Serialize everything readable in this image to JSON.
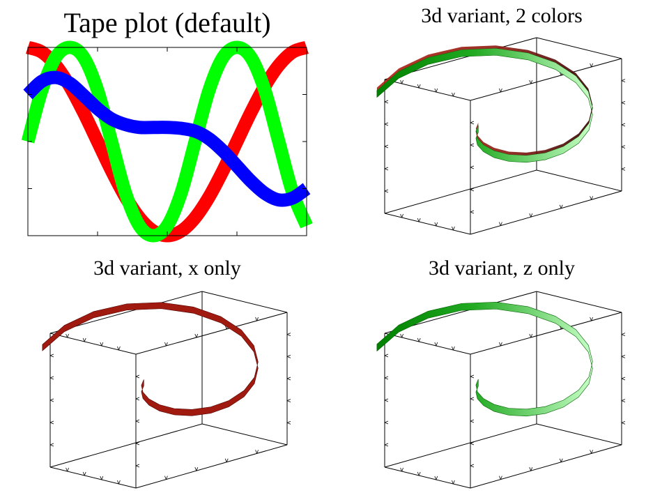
{
  "panels": [
    {
      "id": "tape-default",
      "title": "Tape plot (default)"
    },
    {
      "id": "variant-2colors",
      "title": "3d variant, 2 colors"
    },
    {
      "id": "variant-x",
      "title": "3d variant, x only"
    },
    {
      "id": "variant-z",
      "title": "3d variant, z only"
    }
  ],
  "chart_data": [
    {
      "type": "line",
      "style": "tape",
      "title": "Tape plot (default)",
      "xlim": [
        0,
        1
      ],
      "ylim": [
        -1,
        1
      ],
      "grid": false,
      "series": [
        {
          "color": "#ff0000",
          "x": [
            0,
            0.05,
            0.1,
            0.15,
            0.2,
            0.25,
            0.3,
            0.35,
            0.4,
            0.45,
            0.5,
            0.55,
            0.6,
            0.65,
            0.7,
            0.75,
            0.8,
            0.85,
            0.9,
            0.95,
            1.0
          ],
          "y": [
            1,
            0.951,
            0.809,
            0.588,
            0.309,
            0,
            -0.309,
            -0.588,
            -0.809,
            -0.951,
            -1,
            -0.951,
            -0.809,
            -0.588,
            -0.309,
            0,
            0.309,
            0.588,
            0.809,
            0.951,
            1
          ]
        },
        {
          "color": "#00ff00",
          "x": [
            0,
            0.05,
            0.1,
            0.15,
            0.2,
            0.25,
            0.3,
            0.35,
            0.4,
            0.45,
            0.5,
            0.55,
            0.6,
            0.65,
            0.7,
            0.75,
            0.8,
            0.85,
            0.9,
            0.95,
            1.0
          ],
          "y": [
            0,
            0.545,
            0.895,
            1,
            0.895,
            0.545,
            0,
            -0.545,
            -0.895,
            -1,
            -0.895,
            -0.545,
            0,
            0.545,
            0.895,
            1,
            0.895,
            0.545,
            0,
            -0.545,
            -0.895
          ]
        },
        {
          "color": "#0000ff",
          "x": [
            0,
            0.05,
            0.1,
            0.15,
            0.2,
            0.25,
            0.3,
            0.35,
            0.4,
            0.45,
            0.5,
            0.55,
            0.6,
            0.65,
            0.7,
            0.75,
            0.8,
            0.85,
            0.9,
            0.95,
            1.0
          ],
          "y": [
            0.5,
            0.64,
            0.68,
            0.62,
            0.49,
            0.35,
            0.24,
            0.18,
            0.15,
            0.15,
            0.15,
            0.14,
            0.11,
            0.03,
            -0.1,
            -0.26,
            -0.42,
            -0.55,
            -0.62,
            -0.6,
            -0.5
          ]
        }
      ]
    },
    {
      "type": "line3d",
      "style": "tape",
      "title": "3d variant, 2 colors",
      "colors": [
        "#c0392b",
        "#00c000"
      ],
      "t": [
        0,
        0.05,
        0.1,
        0.15,
        0.2,
        0.25,
        0.3,
        0.35,
        0.4,
        0.45,
        0.5,
        0.55,
        0.6,
        0.65,
        0.7,
        0.75,
        0.8,
        0.85,
        0.9,
        0.95,
        1.0
      ]
    },
    {
      "type": "line3d",
      "style": "tape",
      "title": "3d variant, x only",
      "colors": [
        "#c0392b"
      ],
      "t": [
        0,
        0.05,
        0.1,
        0.15,
        0.2,
        0.25,
        0.3,
        0.35,
        0.4,
        0.45,
        0.5,
        0.55,
        0.6,
        0.65,
        0.7,
        0.75,
        0.8,
        0.85,
        0.9,
        0.95,
        1.0
      ]
    },
    {
      "type": "line3d",
      "style": "tape",
      "title": "3d variant, z only",
      "colors": [
        "#00c000"
      ],
      "t": [
        0,
        0.05,
        0.1,
        0.15,
        0.2,
        0.25,
        0.3,
        0.35,
        0.4,
        0.45,
        0.5,
        0.55,
        0.6,
        0.65,
        0.7,
        0.75,
        0.8,
        0.85,
        0.9,
        0.95,
        1.0
      ]
    }
  ]
}
